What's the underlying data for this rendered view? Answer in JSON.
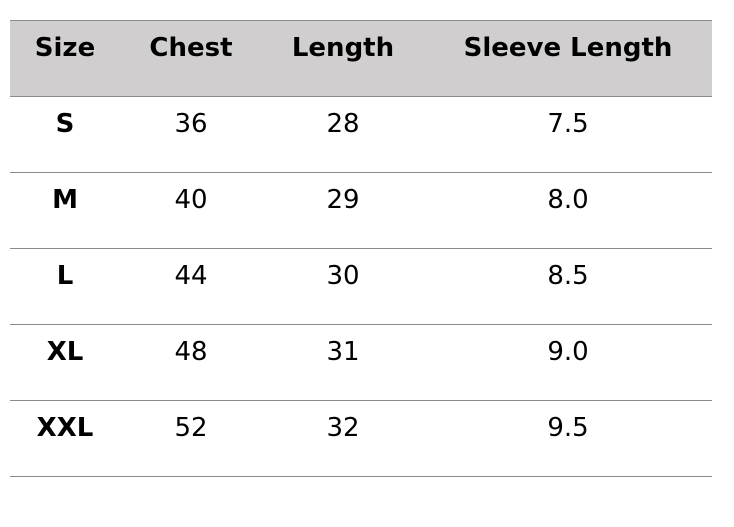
{
  "table": {
    "headers": [
      "Size",
      "Chest",
      "Length",
      "Sleeve Length"
    ],
    "rows": [
      [
        "S",
        "36",
        "28",
        "7.5"
      ],
      [
        "M",
        "40",
        "29",
        "8.0"
      ],
      [
        "L",
        "44",
        "30",
        "8.5"
      ],
      [
        "XL",
        "48",
        "31",
        "9.0"
      ],
      [
        "XXL",
        "52",
        "32",
        "9.5"
      ]
    ],
    "header_background": "#d0cece"
  }
}
